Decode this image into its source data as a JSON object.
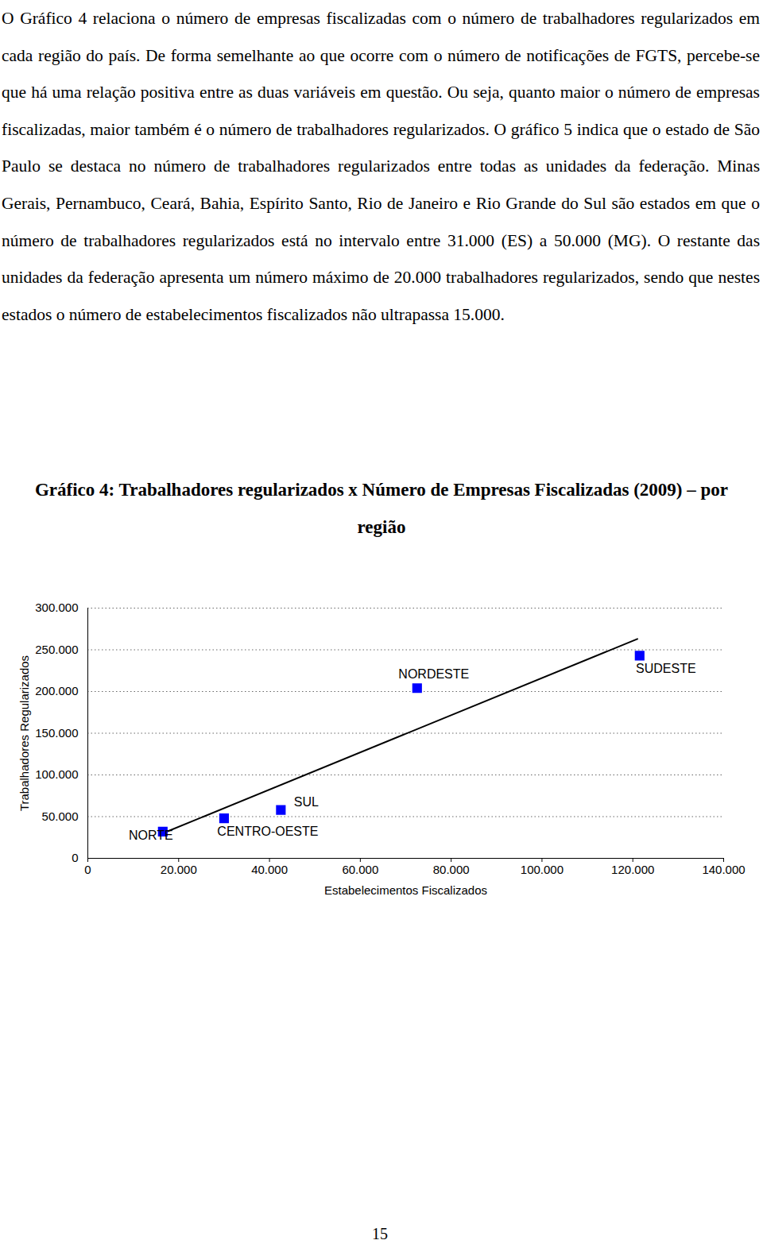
{
  "text": "O Gráfico 4 relaciona o número de empresas fiscalizadas com o número de trabalhadores regularizados em cada região do país. De forma semelhante ao que ocorre com o número de notificações de FGTS, percebe-se que há uma relação positiva entre as duas variáveis em questão. Ou seja, quanto maior o número de empresas fiscalizadas, maior também é o número de trabalhadores regularizados. O gráfico 5 indica que o estado de São Paulo se destaca no número de trabalhadores regularizados entre todas as unidades da federação. Minas Gerais, Pernambuco, Ceará, Bahia, Espírito Santo, Rio de Janeiro e Rio Grande do Sul são estados em que o número de trabalhadores regularizados está no intervalo entre 31.000 (ES) a 50.000 (MG). O restante das unidades da federação apresenta um número máximo de 20.000 trabalhadores regularizados, sendo que nestes estados o número de estabelecimentos fiscalizados não ultrapassa 15.000.",
  "chart_data": {
    "type": "scatter",
    "title": "Gráfico 4: Trabalhadores regularizados x Número de Empresas Fiscalizadas (2009) – por região",
    "x_label": "Estabelecimentos Fiscalizados",
    "y_label": "Trabalhadores Regularizados",
    "categories": [
      "NORTE",
      "CENTRO-OESTE",
      "SUL",
      "NORDESTE",
      "SUDESTE"
    ],
    "x": [
      16500,
      30000,
      42500,
      72500,
      121500
    ],
    "values": [
      32000,
      48000,
      58000,
      204000,
      243000
    ],
    "trendline": {
      "x": [
        16500,
        121000
      ],
      "values": [
        30000,
        263000
      ]
    },
    "color": "#0000ff",
    "marker": "square",
    "xlim": [
      0,
      140000
    ],
    "xticks": [
      0,
      {
        "value": 20000,
        "label": "20.000"
      },
      {
        "value": 40000,
        "label": "40.000"
      },
      {
        "value": 60000,
        "label": "60.000"
      },
      {
        "value": 80000,
        "label": "80.000"
      },
      {
        "value": 100000,
        "label": "100.000"
      },
      {
        "value": 120000,
        "label": "120.000"
      },
      {
        "value": 140000,
        "label": "140.000"
      }
    ],
    "ylim": [
      0,
      300000
    ],
    "yticks": [
      0,
      {
        "value": 50000,
        "label": "50.000"
      },
      {
        "value": 100000,
        "label": "100.000"
      },
      {
        "value": 150000,
        "label": "150.000"
      },
      {
        "value": 200000,
        "label": "200.000"
      },
      {
        "value": 250000,
        "label": "250.000"
      },
      {
        "value": 300000,
        "label": "300.000"
      }
    ],
    "grid": true
  },
  "page_number": "15"
}
